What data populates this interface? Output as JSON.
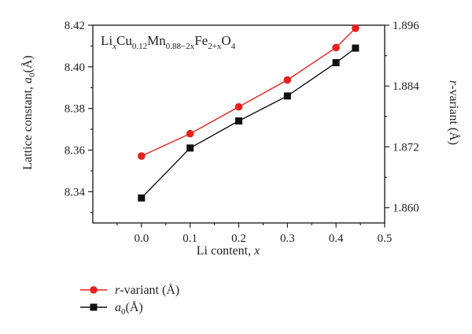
{
  "chart_data": {
    "type": "line",
    "annotation": {
      "parts": [
        {
          "text": "Li",
          "sub": false
        },
        {
          "text": "x",
          "sub": true,
          "italic": true
        },
        {
          "text": "Cu",
          "sub": false
        },
        {
          "text": "0.12",
          "sub": true
        },
        {
          "text": "Mn",
          "sub": false
        },
        {
          "text": "0.88−2x",
          "sub": true
        },
        {
          "text": "Fe",
          "sub": false
        },
        {
          "text": "2+x",
          "sub": true
        },
        {
          "text": "O",
          "sub": false
        },
        {
          "text": "4",
          "sub": true
        }
      ]
    },
    "xlabel": {
      "text": "Li content, ",
      "var": "x"
    },
    "ylabel_left": {
      "text": "Lattice constant, ",
      "var": "a",
      "sub": "0",
      "unit": "(Å)"
    },
    "ylabel_right": {
      "var": "r",
      "text": "-variant (Å)"
    },
    "xlim": [
      -0.1,
      0.5
    ],
    "ylim_left": [
      8.325,
      8.42
    ],
    "ylim_right": [
      1.857,
      1.896
    ],
    "x_ticks": [
      "0.0",
      "0.1",
      "0.2",
      "0.3",
      "0.4",
      "0.5"
    ],
    "y_left_ticks": [
      "8.34",
      "8.36",
      "8.38",
      "8.40",
      "8.42"
    ],
    "y_right_ticks": [
      "1.860",
      "1.872",
      "1.884",
      "1.896"
    ],
    "series": [
      {
        "key": "r_variant",
        "axis": "right",
        "color": "#e8211e",
        "marker": "circle",
        "x": [
          0.0,
          0.1,
          0.2,
          0.3,
          0.4,
          0.44
        ],
        "y": [
          1.8702,
          1.8746,
          1.8799,
          1.8852,
          1.8916,
          1.8954
        ]
      },
      {
        "key": "a0",
        "axis": "left",
        "color": "#111111",
        "marker": "square",
        "x": [
          0.0,
          0.1,
          0.2,
          0.3,
          0.4,
          0.44
        ],
        "y": [
          8.337,
          8.361,
          8.374,
          8.386,
          8.402,
          8.409
        ]
      }
    ],
    "legend": {
      "position": "below-left",
      "entries": [
        {
          "series": "r_variant",
          "var": "r",
          "text": "-variant (Å)"
        },
        {
          "series": "a0",
          "var": "a",
          "sub": "0",
          "text": "(Å)"
        }
      ]
    }
  }
}
